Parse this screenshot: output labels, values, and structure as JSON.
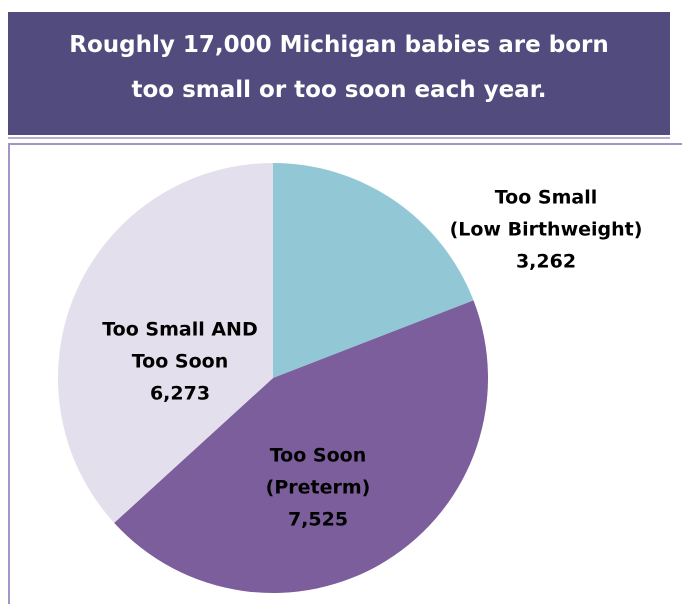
{
  "chart_data": {
    "type": "pie",
    "title": "Roughly 17,000 Michigan babies are born too small or too soon each year.",
    "categories": [
      [
        "Too Small",
        "(Low Birthweight)"
      ],
      [
        "Too Soon",
        "(Preterm)"
      ],
      [
        "Too Small AND",
        "Too Soon"
      ]
    ],
    "values": [
      3262,
      7525,
      6273
    ],
    "value_labels": [
      "3,262",
      "7,525",
      "6,273"
    ],
    "colors": [
      "#92c8d6",
      "#7b5e9b",
      "#e4dfec"
    ]
  }
}
